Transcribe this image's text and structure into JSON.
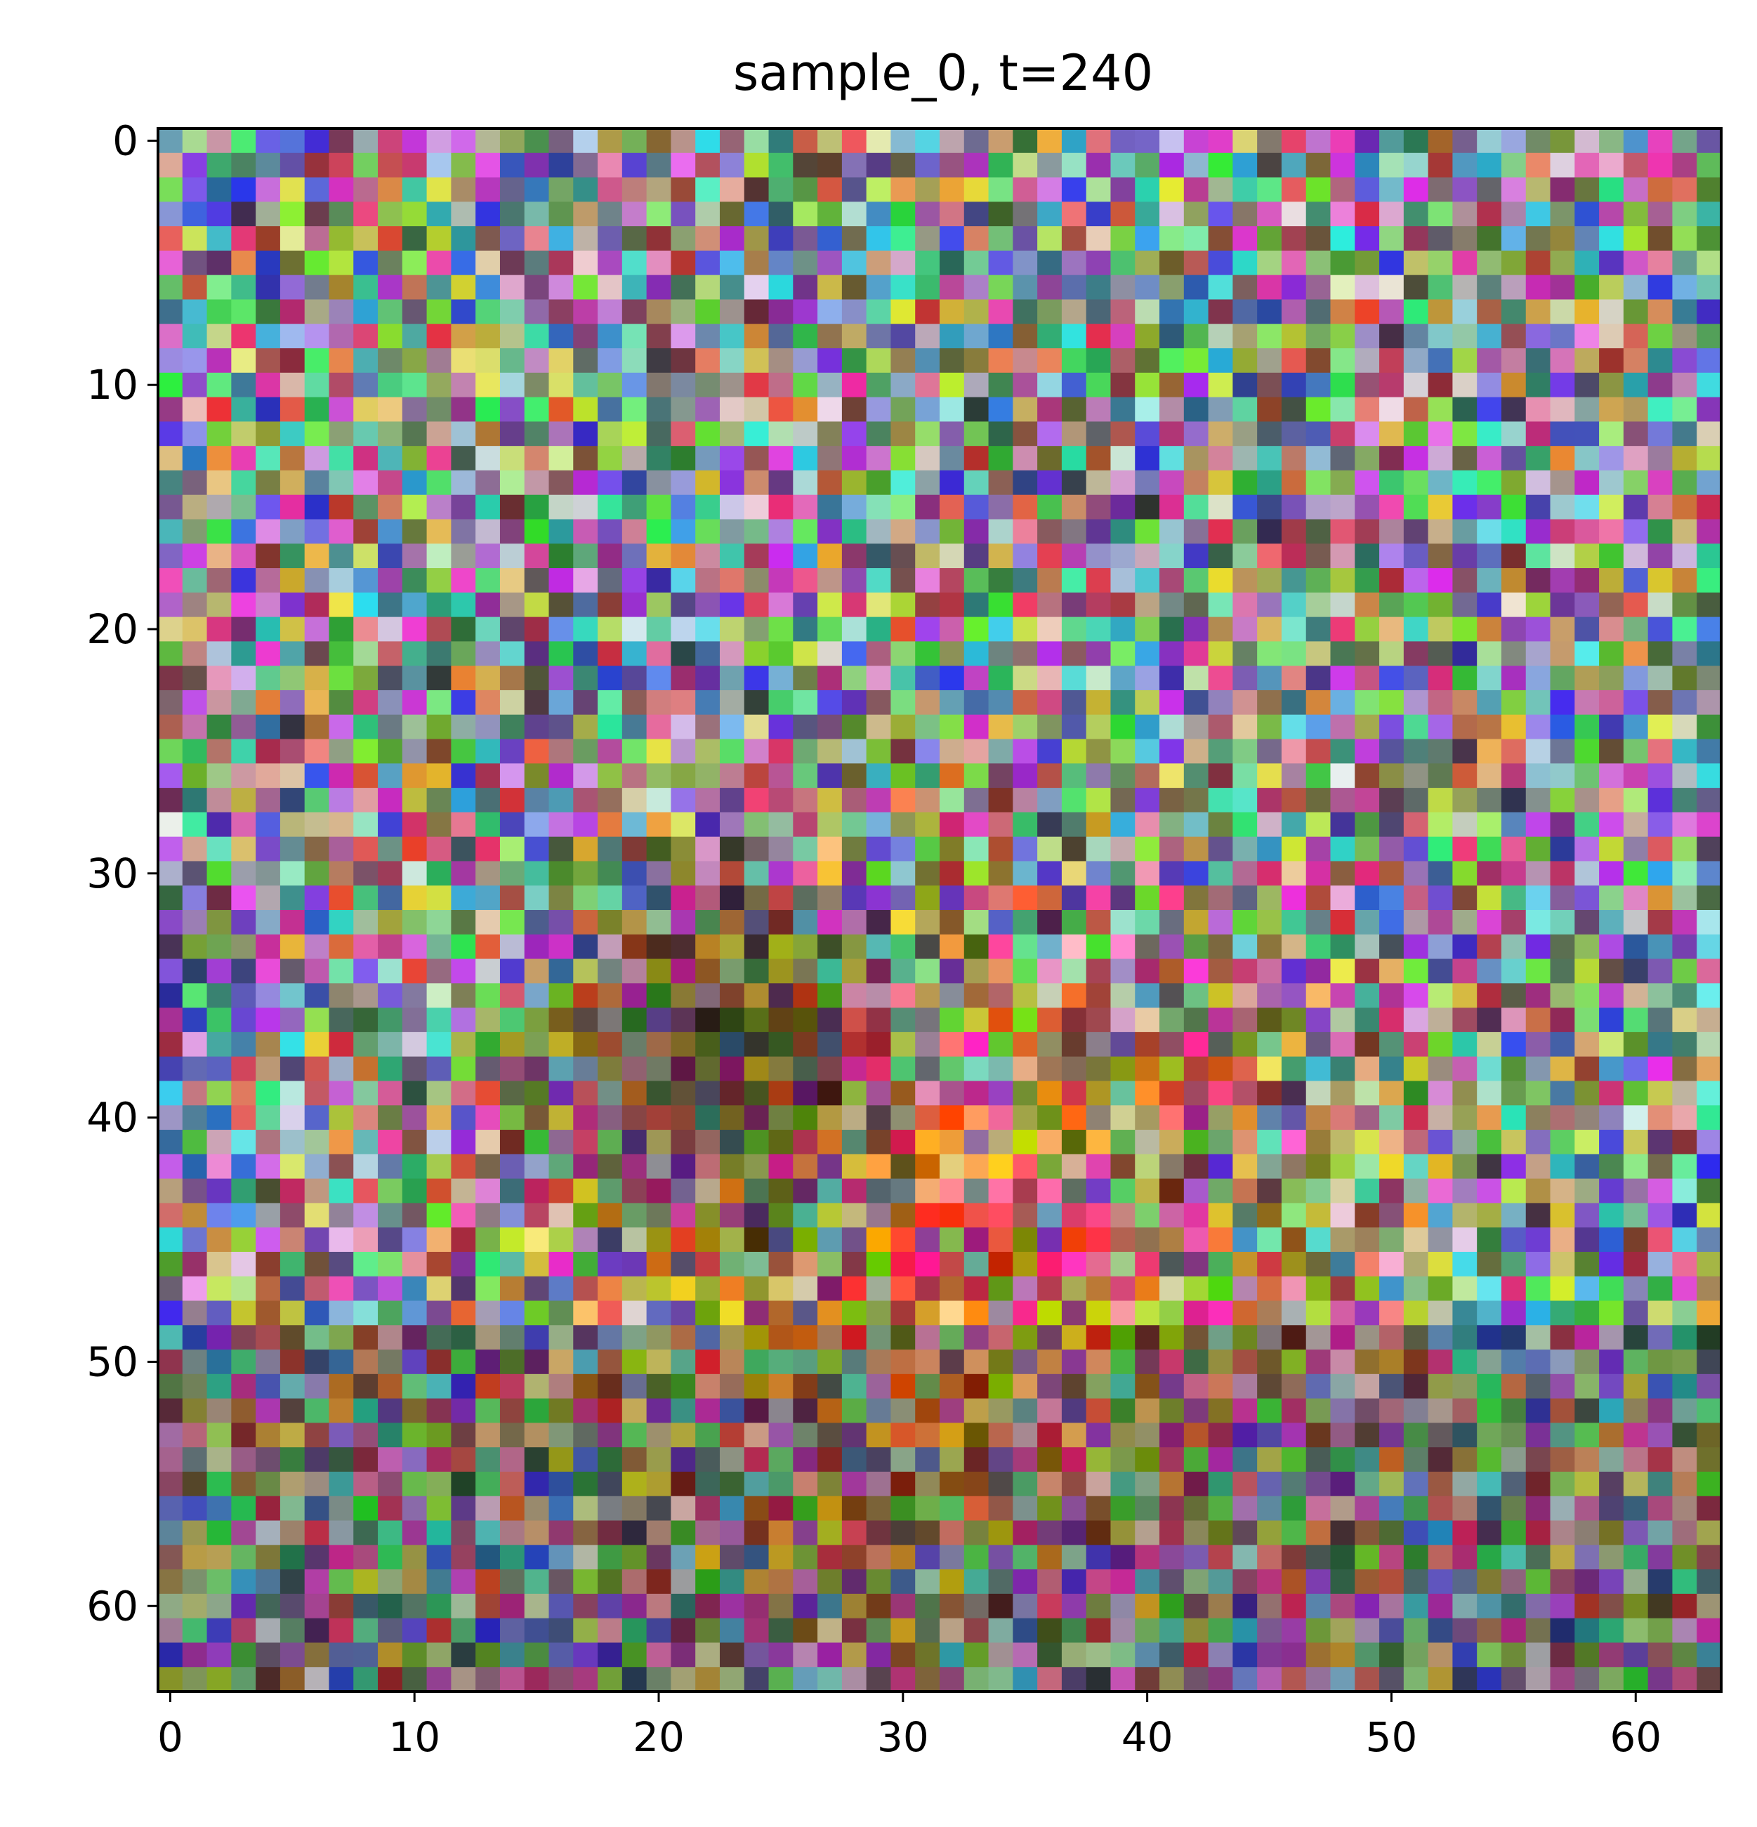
{
  "chart_data": {
    "type": "heatmap",
    "title": "sample_0, t=240",
    "xlabel": "",
    "ylabel": "",
    "image_shape": [
      64,
      64,
      3
    ],
    "xlim": [
      -0.5,
      63.5
    ],
    "ylim": [
      63.5,
      -0.5
    ],
    "x_ticks": [
      0,
      10,
      20,
      30,
      40,
      50,
      60
    ],
    "y_ticks": [
      0,
      10,
      20,
      30,
      40,
      50,
      60
    ],
    "x_tick_labels": [
      "0",
      "10",
      "20",
      "30",
      "40",
      "50",
      "60"
    ],
    "y_tick_labels": [
      "0",
      "10",
      "20",
      "30",
      "40",
      "50",
      "60"
    ],
    "y_axis_inverted": true,
    "grid": false,
    "description_of_pixels": "64x64 RGB noisy diffusion sample; mostly random colored noise with darker/warmer region in the lower-center",
    "warm_region_center": [
      32,
      45
    ],
    "dark_region_center": [
      22,
      38
    ]
  }
}
